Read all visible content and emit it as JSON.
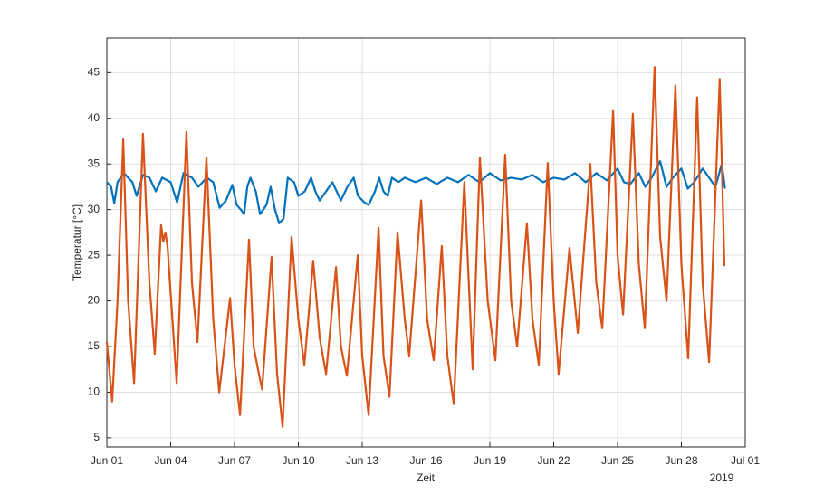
{
  "chart_data": {
    "type": "line",
    "xlabel": "Zeit",
    "ylabel": "Temperatur [°C]",
    "x_year_label": "2019",
    "xlim": [
      0,
      30
    ],
    "ylim": [
      4,
      48.8
    ],
    "xticks": [
      {
        "value": 0,
        "label": "Jun 01"
      },
      {
        "value": 3,
        "label": "Jun 04"
      },
      {
        "value": 6,
        "label": "Jun 07"
      },
      {
        "value": 9,
        "label": "Jun 10"
      },
      {
        "value": 12,
        "label": "Jun 13"
      },
      {
        "value": 15,
        "label": "Jun 16"
      },
      {
        "value": 18,
        "label": "Jun 19"
      },
      {
        "value": 21,
        "label": "Jun 22"
      },
      {
        "value": 24,
        "label": "Jun 25"
      },
      {
        "value": 27,
        "label": "Jun 28"
      },
      {
        "value": 30,
        "label": "Jul 01"
      }
    ],
    "yticks": [
      5,
      10,
      15,
      20,
      25,
      30,
      35,
      40,
      45
    ],
    "grid": true,
    "series": [
      {
        "color": "#0072bd",
        "x": [
          0,
          0.2,
          0.35,
          0.5,
          0.8,
          1.2,
          1.4,
          1.7,
          2.0,
          2.3,
          2.6,
          3.0,
          3.3,
          3.6,
          4.0,
          4.3,
          4.7,
          5.0,
          5.3,
          5.6,
          5.9,
          6.1,
          6.3,
          6.45,
          6.6,
          6.75,
          7.0,
          7.2,
          7.5,
          7.7,
          7.9,
          8.1,
          8.3,
          8.5,
          8.8,
          9.0,
          9.3,
          9.6,
          9.8,
          10.0,
          10.3,
          10.6,
          10.8,
          11.0,
          11.3,
          11.6,
          11.8,
          12.1,
          12.3,
          12.6,
          12.8,
          13.0,
          13.2,
          13.4,
          13.7,
          14.0,
          14.5,
          15.0,
          15.5,
          16.0,
          16.5,
          17.0,
          17.5,
          18.0,
          18.5,
          19.0,
          19.5,
          20.0,
          20.5,
          21.0,
          21.5,
          22.0,
          22.5,
          23.0,
          23.5,
          24.0,
          24.3,
          24.6,
          25.0,
          25.3,
          25.6,
          26.0,
          26.3,
          26.6,
          27.0,
          27.3,
          27.6,
          28.0,
          28.3,
          28.6,
          28.9,
          29.05
        ],
        "values": [
          33,
          32.5,
          30.7,
          33,
          34,
          33,
          31.5,
          33.8,
          33.5,
          32,
          33.5,
          33,
          30.8,
          34,
          33.5,
          32.5,
          33.5,
          33,
          30.2,
          31,
          32.7,
          30.5,
          30,
          29.5,
          32.5,
          33.5,
          32,
          29.5,
          30.5,
          32.5,
          30,
          28.5,
          29,
          33.5,
          33,
          31.5,
          32,
          33.5,
          32,
          31,
          32,
          33,
          32,
          31,
          32.5,
          33.5,
          31.5,
          30.8,
          30.5,
          32,
          33.5,
          32,
          31.5,
          33.5,
          33,
          33.5,
          33,
          33.5,
          32.8,
          33.5,
          33,
          33.8,
          33,
          34,
          33.2,
          33.5,
          33.3,
          33.8,
          33,
          33.5,
          33.3,
          34,
          33,
          34,
          33.2,
          34.5,
          33,
          32.8,
          34,
          32.5,
          33.5,
          35.3,
          32.5,
          33.5,
          34.5,
          32.3,
          33,
          34.5,
          33.5,
          32.5,
          35,
          32.3
        ]
      },
      {
        "color": "#d95319",
        "x": [
          0,
          0.25,
          0.5,
          0.77,
          1.0,
          1.28,
          1.7,
          2.0,
          2.25,
          2.55,
          2.65,
          2.75,
          2.85,
          3.28,
          3.74,
          4.0,
          4.26,
          4.68,
          5.0,
          5.28,
          5.79,
          6.0,
          6.26,
          6.68,
          6.9,
          7.1,
          7.3,
          7.74,
          8.0,
          8.26,
          8.68,
          9.0,
          9.28,
          9.7,
          10.0,
          10.3,
          10.77,
          11.0,
          11.28,
          11.79,
          12.0,
          12.3,
          12.77,
          13.0,
          13.28,
          13.66,
          14.0,
          14.21,
          14.77,
          15.05,
          15.36,
          15.74,
          16.0,
          16.3,
          16.8,
          17.19,
          17.53,
          17.9,
          18.26,
          18.72,
          19.0,
          19.28,
          19.74,
          20.0,
          20.3,
          20.72,
          21.0,
          21.23,
          21.74,
          22.13,
          22.72,
          23.0,
          23.28,
          23.79,
          24.0,
          24.26,
          24.72,
          25.0,
          25.28,
          25.74,
          26.0,
          26.3,
          26.72,
          27.0,
          27.32,
          27.74,
          28.0,
          28.3,
          28.8,
          29.02
        ],
        "values": [
          15.5,
          9,
          20,
          37.7,
          20,
          11,
          38.3,
          22,
          14.2,
          28.3,
          26.5,
          27.5,
          26,
          11,
          38.5,
          22,
          15.5,
          35.7,
          18,
          10,
          20.3,
          13,
          7.5,
          26.7,
          15,
          12.5,
          10.3,
          24.8,
          12,
          6.2,
          27,
          18,
          13,
          24.4,
          16,
          12,
          23.7,
          15,
          11.8,
          25,
          14,
          7.5,
          28,
          14,
          9.5,
          27.5,
          18,
          14,
          31,
          18,
          13.5,
          26,
          14,
          8.7,
          33,
          12.5,
          35.7,
          20,
          13.5,
          36,
          20,
          15,
          28.5,
          18,
          13,
          35.1,
          20,
          12,
          25.8,
          16.5,
          35,
          22,
          17,
          40.8,
          25,
          18.5,
          40.5,
          24,
          17,
          45.6,
          27,
          20,
          43.6,
          24,
          13.7,
          42.3,
          22,
          13.3,
          44.3,
          23.8
        ]
      }
    ]
  }
}
